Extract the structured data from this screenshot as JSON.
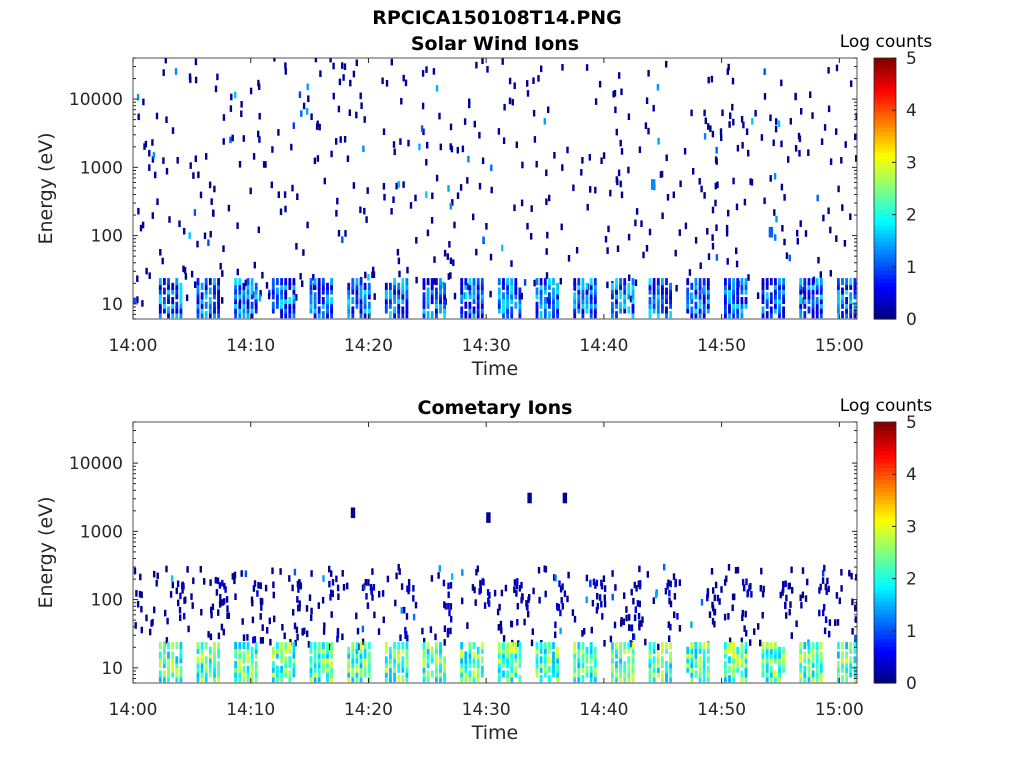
{
  "figure_title": "RPCICA150108T14.PNG",
  "chart_data": [
    {
      "type": "heatmap",
      "title": "Solar Wind Ions",
      "xlabel": "Time",
      "ylabel": "Energy (eV)",
      "x_ticks": [
        "14:00",
        "14:10",
        "14:20",
        "14:30",
        "14:40",
        "14:50",
        "15:00"
      ],
      "x_range_minutes": [
        0,
        61.5
      ],
      "y_ticks": [
        "10",
        "100",
        "1000",
        "10000"
      ],
      "y_scale": "log",
      "ylim": [
        6,
        40000
      ],
      "colorbar": {
        "label": "Log counts",
        "ticks": [
          "0",
          "1",
          "2",
          "3",
          "4",
          "5"
        ],
        "range": [
          0,
          5
        ],
        "colormap": "jet"
      },
      "scan_period_minutes": 3.2,
      "low_energy_band": {
        "energy_range_eV": [
          7,
          25
        ],
        "typical_log_counts": [
          0.3,
          1.8
        ]
      },
      "scatter_background": {
        "energy_range_eV": [
          10,
          40000
        ],
        "typical_log_counts": 0.1
      },
      "features": [
        {
          "time_minutes": 44,
          "energy_eV": 600,
          "log_counts": 1.3
        },
        {
          "time_minutes": 54,
          "energy_eV": 120,
          "log_counts": 1.1
        }
      ]
    },
    {
      "type": "heatmap",
      "title": "Cometary Ions",
      "xlabel": "Time",
      "ylabel": "Energy (eV)",
      "x_ticks": [
        "14:00",
        "14:10",
        "14:20",
        "14:30",
        "14:40",
        "14:50",
        "15:00"
      ],
      "x_range_minutes": [
        0,
        61.5
      ],
      "y_ticks": [
        "10",
        "100",
        "1000",
        "10000"
      ],
      "y_scale": "log",
      "ylim": [
        6,
        40000
      ],
      "colorbar": {
        "label": "Log counts",
        "ticks": [
          "0",
          "1",
          "2",
          "3",
          "4",
          "5"
        ],
        "range": [
          0,
          5
        ],
        "colormap": "jet"
      },
      "scan_period_minutes": 3.2,
      "low_energy_band": {
        "energy_range_eV": [
          7,
          25
        ],
        "typical_log_counts": [
          1.5,
          3.0
        ]
      },
      "scatter_background": {
        "energy_range_eV": [
          20,
          300
        ],
        "typical_log_counts": 0.1
      },
      "features": [
        {
          "time_minutes": 18.5,
          "energy_eV": 2000,
          "log_counts": 0.1
        },
        {
          "time_minutes": 30,
          "energy_eV": 1700,
          "log_counts": 0.1
        },
        {
          "time_minutes": 33.5,
          "energy_eV": 3300,
          "log_counts": 0.1
        },
        {
          "time_minutes": 36.5,
          "energy_eV": 3300,
          "log_counts": 0.1
        }
      ]
    }
  ]
}
